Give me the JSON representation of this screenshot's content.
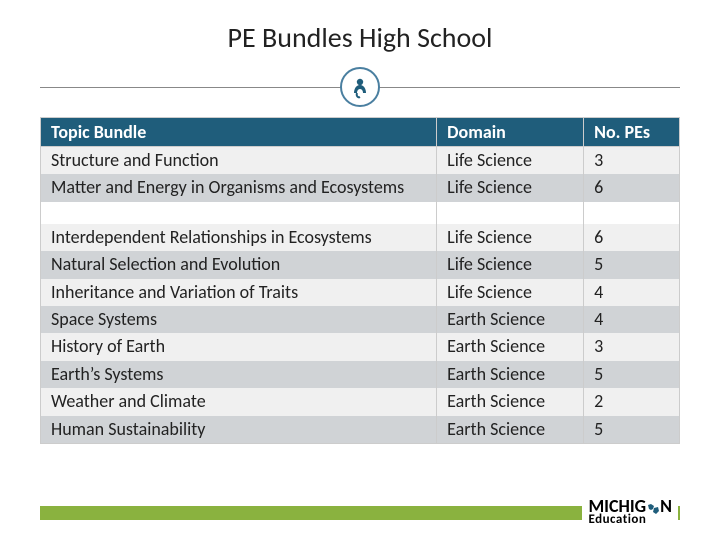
{
  "title": "PE Bundles High School",
  "columns": [
    "Topic Bundle",
    "Domain",
    "No. PEs"
  ],
  "group1": [
    {
      "topic": "Structure and Function",
      "domain": "Life Science",
      "pes": "3"
    },
    {
      "topic": "Matter and Energy in Organisms and Ecosystems",
      "domain": "Life Science",
      "pes": "6"
    }
  ],
  "group2": [
    {
      "topic": "Interdependent Relationships in Ecosystems",
      "domain": "Life Science",
      "pes": "6"
    },
    {
      "topic": "Natural Selection and Evolution",
      "domain": "Life Science",
      "pes": "5"
    },
    {
      "topic": "Inheritance and Variation of Traits",
      "domain": "Life Science",
      "pes": "4"
    },
    {
      "topic": "Space Systems",
      "domain": "Earth Science",
      "pes": "4"
    },
    {
      "topic": "History of Earth",
      "domain": "Earth Science",
      "pes": "3"
    },
    {
      "topic": "Earth’s Systems",
      "domain": "Earth Science",
      "pes": "5"
    },
    {
      "topic": "Weather and Climate",
      "domain": "Earth Science",
      "pes": "2"
    },
    {
      "topic": "Human Sustainability",
      "domain": "Earth Science",
      "pes": "5"
    }
  ],
  "brand": {
    "line1": "MICHIG",
    "line1b": "N",
    "line2": "Education"
  },
  "colors": {
    "header_bg": "#1f5d7b",
    "row_even": "#d0d3d6",
    "row_odd": "#f0f0f0",
    "footer_bar": "#8ab23f",
    "divider_ring": "#4a7fa0"
  }
}
